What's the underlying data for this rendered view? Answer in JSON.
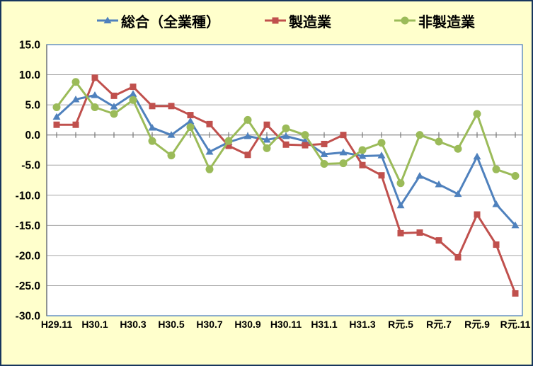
{
  "window": {
    "background": "#FFFFCC",
    "border_color": "#17365D",
    "plot_background": "#FFFFFF",
    "plot_border_color": "#4F81BD",
    "gridline_color": "#A6A6A6",
    "axis_color": "#777777",
    "text_color": "#000000"
  },
  "legend": {
    "position": "top",
    "items": [
      {
        "label": "総合（全業種）",
        "color": "#4F81BD",
        "marker": "triangle"
      },
      {
        "label": "製造業",
        "color": "#C0504D",
        "marker": "square"
      },
      {
        "label": "非製造業",
        "color": "#9BBB59",
        "marker": "circle"
      }
    ]
  },
  "chart_data": {
    "type": "line",
    "title": "",
    "xlabel": "",
    "ylabel": "",
    "n_points": 25,
    "x_label_every": 2,
    "x_tick_labels": [
      "H29.11",
      "H30.1",
      "H30.3",
      "H30.5",
      "H30.7",
      "H30.9",
      "H30.11",
      "H31.1",
      "H31.3",
      "R元.5",
      "R元.7",
      "R元.9",
      "R元.11"
    ],
    "y_tick_labels": [
      "15.0",
      "10.0",
      "5.0",
      "0.0",
      "-5.0",
      "-10.0",
      "-15.0",
      "-20.0",
      "-25.0",
      "-30.0"
    ],
    "ylim": [
      -30,
      15
    ],
    "y_step": 5,
    "grid": true,
    "category_axis_crosses_at": 0,
    "series": [
      {
        "name": "総合（全業種）",
        "color": "#4F81BD",
        "marker": "triangle",
        "values": [
          3.0,
          5.9,
          6.6,
          4.7,
          6.8,
          1.2,
          0.0,
          2.3,
          -2.8,
          -1.2,
          -0.2,
          -0.8,
          -0.2,
          -1.0,
          -3.2,
          -2.9,
          -3.5,
          -3.4,
          -11.7,
          -6.8,
          -8.2,
          -9.8,
          -3.6,
          -11.5,
          -15.0
        ]
      },
      {
        "name": "製造業",
        "color": "#C0504D",
        "marker": "square",
        "values": [
          1.7,
          1.7,
          9.5,
          6.5,
          8.0,
          4.8,
          4.8,
          3.3,
          1.8,
          -1.8,
          -3.3,
          1.7,
          -1.6,
          -1.7,
          -1.5,
          0.0,
          -5.0,
          -6.7,
          -16.3,
          -16.2,
          -17.5,
          -20.3,
          -13.2,
          -18.2,
          -26.3
        ]
      },
      {
        "name": "非製造業",
        "color": "#9BBB59",
        "marker": "circle",
        "values": [
          4.6,
          8.8,
          4.6,
          3.5,
          5.8,
          -1.0,
          -3.4,
          1.3,
          -5.7,
          -1.0,
          2.5,
          -2.2,
          1.1,
          0.0,
          -4.8,
          -4.7,
          -2.5,
          -1.3,
          -8.0,
          0.0,
          -1.1,
          -2.3,
          3.5,
          -5.7,
          -6.8
        ]
      }
    ]
  }
}
